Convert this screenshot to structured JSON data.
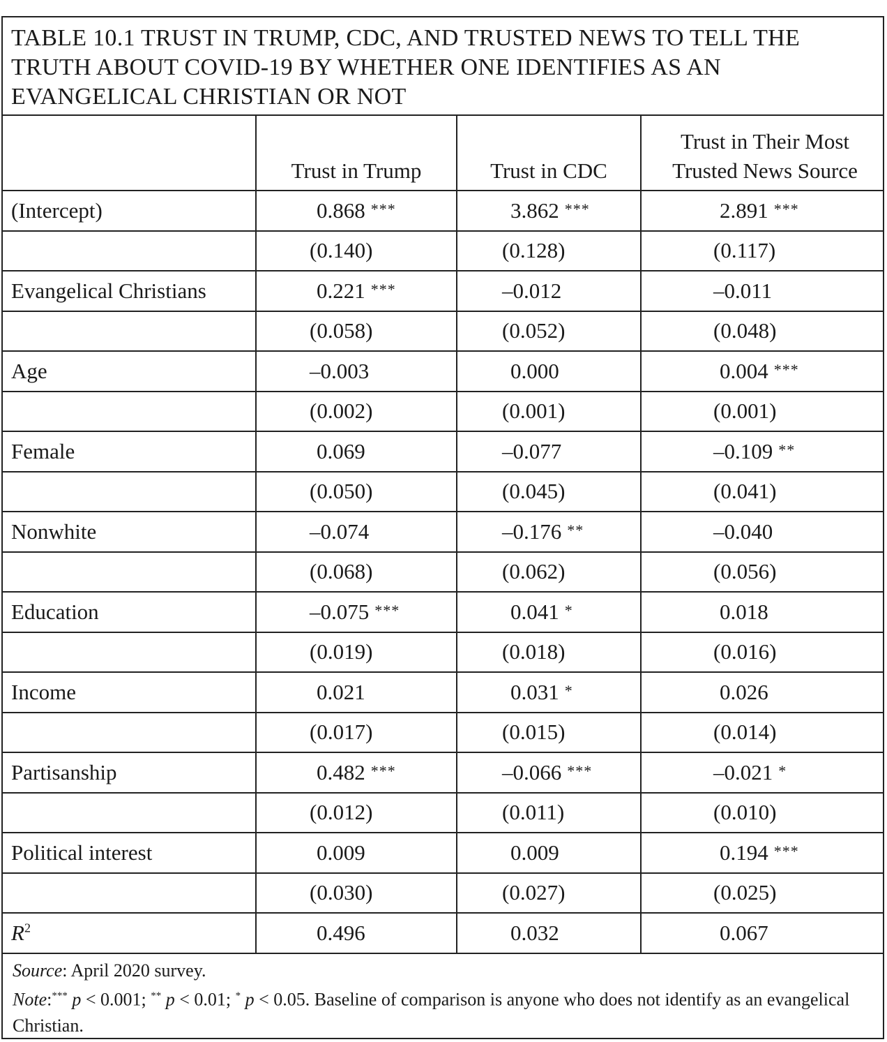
{
  "title": "TABLE 10.1  TRUST IN TRUMP, CDC, AND TRUSTED NEWS TO TELL THE TRUTH ABOUT COVID-19 BY WHETHER ONE IDENTIFIES AS AN EVANGELICAL CHRISTIAN OR NOT",
  "columns": [
    "",
    "Trust in Trump",
    "Trust in CDC",
    "Trust in Their Most Trusted News Source"
  ],
  "rows": [
    {
      "label": "(Intercept)",
      "trump": "0.868",
      "trump_sig": "***",
      "cdc": "3.862",
      "cdc_sig": "***",
      "news": "2.891",
      "news_sig": "***",
      "trump_se": "(0.140)",
      "cdc_se": "(0.128)",
      "news_se": "(0.117)"
    },
    {
      "label": "Evangelical Christians",
      "trump": "0.221",
      "trump_sig": "***",
      "cdc": "–0.012",
      "cdc_sig": "",
      "news": "–0.011",
      "news_sig": "",
      "trump_se": "(0.058)",
      "cdc_se": "(0.052)",
      "news_se": "(0.048)"
    },
    {
      "label": "Age",
      "trump": "–0.003",
      "trump_sig": "",
      "cdc": "0.000",
      "cdc_sig": "",
      "news": "0.004",
      "news_sig": "***",
      "trump_se": "(0.002)",
      "cdc_se": "(0.001)",
      "news_se": "(0.001)"
    },
    {
      "label": "Female",
      "trump": "0.069",
      "trump_sig": "",
      "cdc": "–0.077",
      "cdc_sig": "",
      "news": "–0.109",
      "news_sig": "**",
      "trump_se": "(0.050)",
      "cdc_se": "(0.045)",
      "news_se": "(0.041)"
    },
    {
      "label": "Nonwhite",
      "trump": "–0.074",
      "trump_sig": "",
      "cdc": "–0.176",
      "cdc_sig": "**",
      "news": "–0.040",
      "news_sig": "",
      "trump_se": "(0.068)",
      "cdc_se": "(0.062)",
      "news_se": "(0.056)"
    },
    {
      "label": "Education",
      "trump": "–0.075",
      "trump_sig": "***",
      "cdc": "0.041",
      "cdc_sig": "*",
      "news": "0.018",
      "news_sig": "",
      "trump_se": "(0.019)",
      "cdc_se": "(0.018)",
      "news_se": "(0.016)"
    },
    {
      "label": "Income",
      "trump": "0.021",
      "trump_sig": "",
      "cdc": "0.031",
      "cdc_sig": "*",
      "news": "0.026",
      "news_sig": "",
      "trump_se": "(0.017)",
      "cdc_se": "(0.015)",
      "news_se": "(0.014)"
    },
    {
      "label": "Partisanship",
      "trump": "0.482",
      "trump_sig": "***",
      "cdc": "–0.066",
      "cdc_sig": "***",
      "news": "–0.021",
      "news_sig": "*",
      "trump_se": "(0.012)",
      "cdc_se": "(0.011)",
      "news_se": "(0.010)"
    },
    {
      "label": "Political interest",
      "trump": "0.009",
      "trump_sig": "",
      "cdc": "0.009",
      "cdc_sig": "",
      "news": "0.194",
      "news_sig": "***",
      "trump_se": "(0.030)",
      "cdc_se": "(0.027)",
      "news_se": "(0.025)"
    }
  ],
  "r2": {
    "label": "R",
    "sup": "2",
    "trump": "0.496",
    "cdc": "0.032",
    "news": "0.067"
  },
  "source": {
    "label": "Source",
    "text": ": April 2020 survey."
  },
  "note": {
    "label": "Note",
    "s1": "***",
    "t1": " p",
    "t1b": " < 0.001; ",
    "s2": "**",
    "t2": " p",
    "t2b": " < 0.01; ",
    "s3": "*",
    "t3": " p",
    "t3b": " < 0.05. Baseline of comparison is anyone who does not identify as an evangelical Christian."
  }
}
